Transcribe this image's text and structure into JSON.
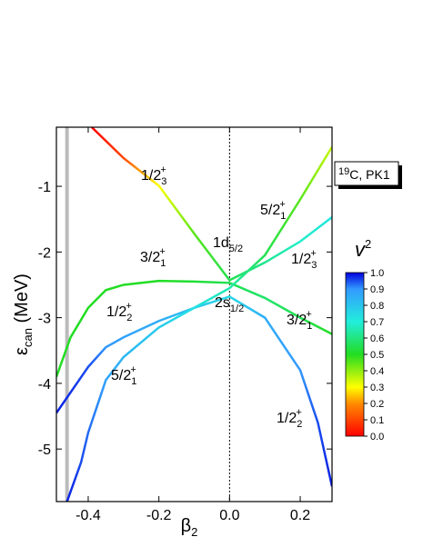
{
  "chart_data": {
    "type": "line",
    "xlim": [
      -0.49,
      0.29
    ],
    "ylim": [
      -5.8,
      -0.1
    ],
    "xticks": [
      -0.4,
      -0.2,
      {
        "value": 0,
        "label": "0.0"
      },
      0.2
    ],
    "yticks": [
      -1,
      -2,
      -3,
      -4,
      -5
    ],
    "x_label": {
      "symbol": "β",
      "sub": "2"
    },
    "y_label": {
      "symbol": "ε",
      "sub": "can",
      "unit": " (MeV)"
    },
    "vline": -0.46,
    "dashed_vline": 0,
    "colorscale": [
      [
        0,
        "#ff0000"
      ],
      [
        0.2,
        "#ff8c00"
      ],
      [
        0.3,
        "#ffff00"
      ],
      [
        0.5,
        "#22dd22"
      ],
      [
        0.7,
        "#22eedd"
      ],
      [
        0.9,
        "#3399ff"
      ],
      [
        1,
        "#0000dd"
      ]
    ],
    "colorbar": {
      "title": "v",
      "sup": "2",
      "ticks": [
        {
          "value": 0,
          "label": "0.0"
        },
        {
          "value": 0.1,
          "label": "0.1"
        },
        {
          "value": 0.2,
          "label": "0.2"
        },
        {
          "value": 0.3,
          "label": "0.3"
        },
        {
          "value": 0.4,
          "label": "0.4"
        },
        {
          "value": 0.5,
          "label": "0.5"
        },
        {
          "value": 0.6,
          "label": "0.6"
        },
        {
          "value": 0.7,
          "label": "0.7"
        },
        {
          "value": 0.8,
          "label": "0.8"
        },
        {
          "value": 0.9,
          "label": "0.9"
        },
        {
          "value": 1,
          "label": "1.0"
        }
      ]
    },
    "legend_box": {
      "sup": "19",
      "text": "C, PK1"
    },
    "series": [
      {
        "x": [
          -0.39,
          -0.3,
          -0.2,
          -0.1,
          0,
          0.1,
          0.2,
          0.29
        ],
        "values": [
          -0.1,
          -0.57,
          -0.99,
          -1.72,
          -2.43,
          -2.16,
          -1.84,
          -1.47
        ],
        "v2": [
          0.0,
          0.1,
          0.3,
          0.45,
          0.55,
          0.62,
          0.68,
          0.72
        ]
      },
      {
        "x": [
          -0.49,
          -0.45,
          -0.4,
          -0.35,
          -0.3,
          -0.2,
          -0.1,
          0,
          0.1,
          0.2,
          0.29
        ],
        "values": [
          -3.9,
          -3.3,
          -2.85,
          -2.58,
          -2.5,
          -2.44,
          -2.45,
          -2.47,
          -2.7,
          -3.0,
          -3.25
        ],
        "v2": [
          0.5,
          0.5,
          0.5,
          0.5,
          0.5,
          0.5,
          0.52,
          0.55,
          0.58,
          0.55,
          0.5
        ]
      },
      {
        "x": [
          -0.49,
          -0.4,
          -0.35,
          -0.3,
          -0.2,
          -0.1,
          0,
          0.1,
          0.2,
          0.25,
          0.29
        ],
        "values": [
          -4.45,
          -3.75,
          -3.45,
          -3.3,
          -3.05,
          -2.85,
          -2.68,
          -3.0,
          -3.8,
          -4.6,
          -5.57
        ],
        "v2": [
          0.98,
          0.95,
          0.9,
          0.88,
          0.85,
          0.8,
          0.75,
          0.85,
          0.9,
          0.95,
          0.98
        ]
      },
      {
        "x": [
          -0.46,
          -0.42,
          -0.4,
          -0.35,
          -0.3,
          -0.2,
          -0.1,
          0,
          0.1,
          0.2,
          0.29
        ],
        "values": [
          -5.8,
          -5.2,
          -4.75,
          -3.95,
          -3.6,
          -3.15,
          -2.85,
          -2.55,
          -2.05,
          -1.2,
          -0.4
        ],
        "v2": [
          0.98,
          0.95,
          0.93,
          0.88,
          0.83,
          0.78,
          0.73,
          0.65,
          0.55,
          0.45,
          0.35
        ]
      }
    ],
    "annotations": [
      {
        "text": "1/2",
        "sub": "3",
        "sup": "+"
      },
      {
        "text": "1d",
        "sub": "5/2"
      },
      {
        "text": "5/2",
        "sub": "1",
        "sup": "+"
      },
      {
        "text": "1/2",
        "sub": "3",
        "sup": "+"
      },
      {
        "text": "3/2",
        "sub": "1",
        "sup": "+"
      },
      {
        "text": "1/2",
        "sub": "2",
        "sup": "+"
      },
      {
        "text": "2s",
        "sub": "1/2"
      },
      {
        "text": "3/2",
        "sub": "1",
        "sup": "+"
      },
      {
        "text": "5/2",
        "sub": "1",
        "sup": "+"
      },
      {
        "text": "1/2",
        "sub": "2",
        "sup": "+"
      }
    ]
  }
}
